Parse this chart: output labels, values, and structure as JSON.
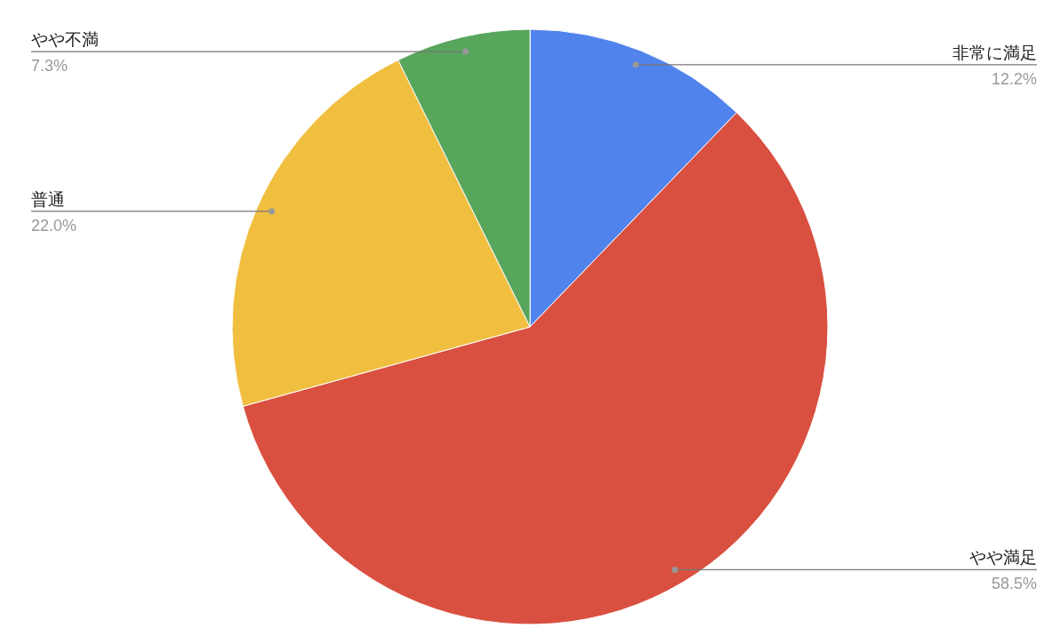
{
  "chart_data": {
    "type": "pie",
    "categories": [
      "非常に満足",
      "やや満足",
      "普通",
      "やや不満"
    ],
    "values": [
      12.2,
      58.5,
      22.0,
      7.3
    ],
    "colors": [
      "#5083ec",
      "#d95040",
      "#f1bf40",
      "#58a55c"
    ],
    "value_labels": [
      "12.2%",
      "58.5%",
      "22.0%",
      "7.3%"
    ]
  }
}
